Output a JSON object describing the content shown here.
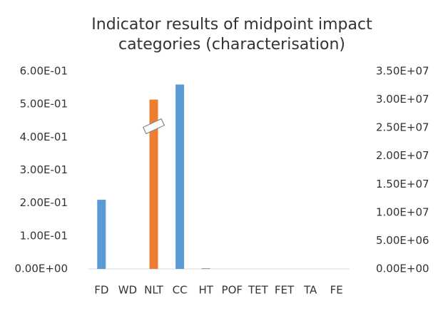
{
  "chart_data": {
    "type": "bar",
    "title": "Indicator results of midpoint impact categories (characterisation)",
    "categories": [
      "FD",
      "WD",
      "NLT",
      "CC",
      "HT",
      "POF",
      "TET",
      "FET",
      "TA",
      "FE"
    ],
    "series": [
      {
        "color": "#5b9bd5",
        "values": [
          0.21,
          0,
          null,
          0.56,
          0.002,
          0,
          0,
          0,
          0,
          0
        ]
      },
      {
        "color": "#ed7d31",
        "axis": "y2",
        "values": [
          null,
          null,
          30000000,
          null,
          null,
          null,
          null,
          null,
          null,
          null
        ]
      }
    ],
    "ylim": [
      0,
      0.6
    ],
    "yticks": [
      {
        "value": 0,
        "label": "0.00E+00"
      },
      {
        "value": 0.1,
        "label": "1.00E-01"
      },
      {
        "value": 0.2,
        "label": "2.00E-01"
      },
      {
        "value": 0.3,
        "label": "3.00E-01"
      },
      {
        "value": 0.4,
        "label": "4.00E-01"
      },
      {
        "value": 0.5,
        "label": "5.00E-01"
      },
      {
        "value": 0.6,
        "label": "6.00E-01"
      }
    ],
    "y2lim": [
      0,
      35000000
    ],
    "y2ticks": [
      {
        "value": 0,
        "label": "0.00E+00"
      },
      {
        "value": 5000000,
        "label": "5.00E+06"
      },
      {
        "value": 10000000,
        "label": "1.00E+07"
      },
      {
        "value": 15000000,
        "label": "1.50E+07"
      },
      {
        "value": 20000000,
        "label": "2.00E+07"
      },
      {
        "value": 25000000,
        "label": "2.50E+07"
      },
      {
        "value": 30000000,
        "label": "3.00E+07"
      },
      {
        "value": 35000000,
        "label": "3.50E+07"
      }
    ],
    "grid": false
  }
}
